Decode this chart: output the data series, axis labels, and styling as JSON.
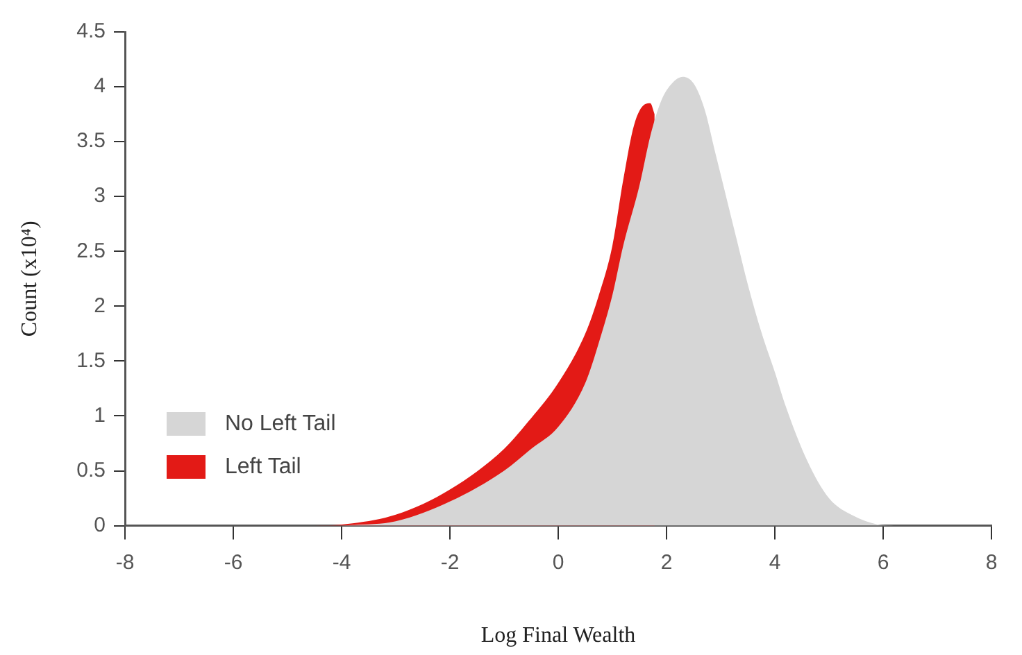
{
  "chart_data": {
    "type": "area",
    "xlabel": "Log Final Wealth",
    "ylabel": "Count (x10⁴)",
    "xlim": [
      -8,
      8
    ],
    "xticks": [
      -8,
      -6,
      -4,
      -2,
      0,
      2,
      4,
      6,
      8
    ],
    "ylim": [
      0,
      4.5
    ],
    "yticks": [
      0,
      0.5,
      1,
      1.5,
      2,
      2.5,
      3,
      3.5,
      4,
      4.5
    ],
    "grid": false,
    "legend": "bottom left",
    "series": [
      {
        "name": "No Left Tail",
        "color": "#d6d6d6",
        "x": [
          -4,
          -3,
          -2,
          -1,
          -0.5,
          0,
          0.5,
          0.77,
          1,
          1.2,
          1.5,
          1.7,
          1.9,
          2.1,
          2.3,
          2.5,
          2.7,
          2.9,
          3.1,
          3.3,
          3.5,
          3.76,
          4,
          4.2,
          4.6,
          5,
          5.45,
          5.9,
          6.2
        ],
        "values": [
          0,
          0.04,
          0.22,
          0.5,
          0.7,
          0.9,
          1.3,
          1.7,
          2.1,
          2.55,
          3.1,
          3.55,
          3.87,
          4.03,
          4.09,
          4.03,
          3.8,
          3.4,
          3,
          2.6,
          2.2,
          1.75,
          1.4,
          1.09,
          0.59,
          0.25,
          0.09,
          0.01,
          0
        ]
      },
      {
        "name": "Left Tail",
        "color": "#e31a16",
        "x": [
          -4.5,
          -4,
          -3,
          -2,
          -1,
          -0.5,
          0,
          0.5,
          0.75,
          1,
          1.2,
          1.4,
          1.6,
          1.7,
          1.78
        ],
        "values": [
          0,
          0.01,
          0.1,
          0.33,
          0.7,
          0.98,
          1.3,
          1.75,
          2.1,
          2.55,
          3.15,
          3.65,
          3.84,
          3.85,
          3.75
        ]
      }
    ]
  }
}
